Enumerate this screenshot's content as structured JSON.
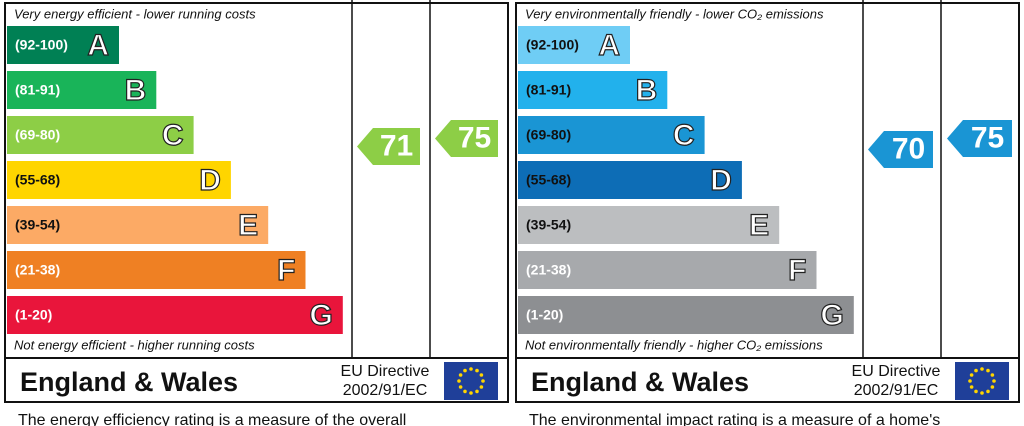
{
  "panels": [
    {
      "top_note": "Very energy efficient - lower running costs",
      "bands": [
        {
          "range": "(92-100)",
          "letter": "A"
        },
        {
          "range": "(81-91)",
          "letter": "B"
        },
        {
          "range": "(69-80)",
          "letter": "C"
        },
        {
          "range": "(55-68)",
          "letter": "D"
        },
        {
          "range": "(39-54)",
          "letter": "E"
        },
        {
          "range": "(21-38)",
          "letter": "F"
        },
        {
          "range": "(1-20)",
          "letter": "G"
        }
      ],
      "bottom_note": "Not energy efficient - higher running costs",
      "current": 71,
      "potential": 75,
      "region": "England & Wales",
      "directive": "EU Directive",
      "directive_code": "2002/91/EC",
      "caption": "The energy efficiency rating is a measure of the overall"
    },
    {
      "top_note": "Very environmentally friendly - lower CO₂ emissions",
      "bands": [
        {
          "range": "(92-100)",
          "letter": "A"
        },
        {
          "range": "(81-91)",
          "letter": "B"
        },
        {
          "range": "(69-80)",
          "letter": "C"
        },
        {
          "range": "(55-68)",
          "letter": "D"
        },
        {
          "range": "(39-54)",
          "letter": "E"
        },
        {
          "range": "(21-38)",
          "letter": "F"
        },
        {
          "range": "(1-20)",
          "letter": "G"
        }
      ],
      "bottom_note": "Not environmentally friendly - higher CO₂ emissions",
      "current": 70,
      "potential": 75,
      "region": "England & Wales",
      "directive": "EU Directive",
      "directive_code": "2002/91/EC",
      "caption": "The environmental impact rating is a measure of a home's"
    }
  ]
}
